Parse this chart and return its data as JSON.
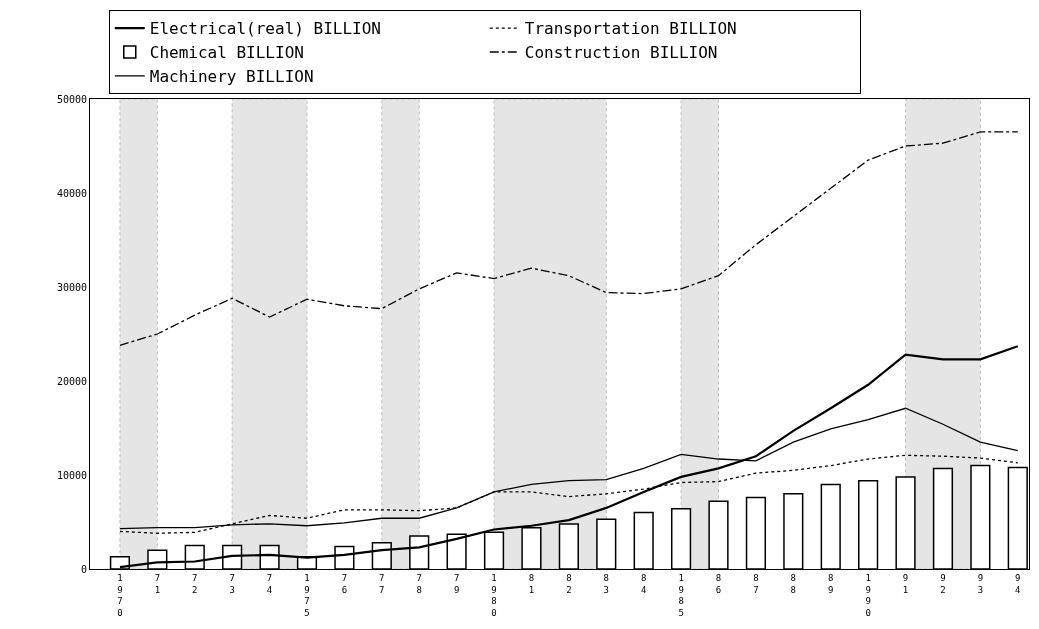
{
  "chart_data": {
    "type": "line",
    "x": [
      1970,
      1971,
      1972,
      1973,
      1974,
      1975,
      1976,
      1977,
      1978,
      1979,
      1980,
      1981,
      1982,
      1983,
      1984,
      1985,
      1986,
      1987,
      1988,
      1989,
      1990,
      1991,
      1992,
      1993,
      1994
    ],
    "series": [
      {
        "name": "Electrical(real) BILLION",
        "line_style": "solid",
        "color": "#000000",
        "values": [
          200,
          700,
          800,
          1400,
          1500,
          1200,
          1500,
          2000,
          2300,
          3200,
          4200,
          4600,
          5200,
          6500,
          8200,
          9800,
          10700,
          12000,
          14700,
          17100,
          19600,
          22800,
          22300,
          22300,
          23700
        ]
      },
      {
        "name": "Transportation BILLION",
        "line_style": "dotted",
        "color": "#000000",
        "values": [
          4000,
          3800,
          3900,
          4800,
          5700,
          5400,
          6300,
          6300,
          6200,
          6500,
          8200,
          8200,
          7700,
          8000,
          8500,
          9200,
          9300,
          10200,
          10500,
          11000,
          11700,
          12100,
          12000,
          11800,
          11300
        ]
      },
      {
        "name": "Chemical BILLION",
        "type": "bar",
        "color": "#ffffff",
        "values": [
          1300,
          2000,
          2500,
          2500,
          2500,
          1300,
          2400,
          2800,
          3500,
          3700,
          3900,
          4400,
          4800,
          5300,
          6000,
          6400,
          7200,
          7600,
          8000,
          9000,
          9400,
          9800,
          10700,
          11000,
          10800
        ]
      },
      {
        "name": "Construction BILLION",
        "line_style": "dashed",
        "color": "#000000",
        "values": [
          23800,
          25000,
          27000,
          28800,
          26800,
          28700,
          28000,
          27700,
          29800,
          31500,
          30900,
          32000,
          31200,
          29400,
          29300,
          29800,
          31200,
          34500,
          37500,
          40500,
          43500,
          45000,
          45300,
          46500,
          46500
        ]
      },
      {
        "name": "Machinery BILLION",
        "line_style": "solid",
        "color": "#000000",
        "values": [
          4300,
          4400,
          4400,
          4700,
          4800,
          4600,
          4900,
          5400,
          5400,
          6500,
          8200,
          9000,
          9400,
          9500,
          10700,
          12200,
          11700,
          11500,
          13500,
          14900,
          15900,
          17100,
          15400,
          13500,
          12600
        ]
      }
    ],
    "xlim": [
      1969.2,
      1994.3
    ],
    "xticks": [
      {
        "value": 1970,
        "label": "1970"
      },
      {
        "value": 1971,
        "label": "71"
      },
      {
        "value": 1972,
        "label": "72"
      },
      {
        "value": 1973,
        "label": "73"
      },
      {
        "value": 1974,
        "label": "74"
      },
      {
        "value": 1975,
        "label": "1975"
      },
      {
        "value": 1976,
        "label": "76"
      },
      {
        "value": 1977,
        "label": "77"
      },
      {
        "value": 1978,
        "label": "78"
      },
      {
        "value": 1979,
        "label": "79"
      },
      {
        "value": 1980,
        "label": "1980"
      },
      {
        "value": 1981,
        "label": "81"
      },
      {
        "value": 1982,
        "label": "82"
      },
      {
        "value": 1983,
        "label": "83"
      },
      {
        "value": 1984,
        "label": "84"
      },
      {
        "value": 1985,
        "label": "1985"
      },
      {
        "value": 1986,
        "label": "86"
      },
      {
        "value": 1987,
        "label": "87"
      },
      {
        "value": 1988,
        "label": "88"
      },
      {
        "value": 1989,
        "label": "89"
      },
      {
        "value": 1990,
        "label": "1990"
      },
      {
        "value": 1991,
        "label": "91"
      },
      {
        "value": 1992,
        "label": "92"
      },
      {
        "value": 1993,
        "label": "93"
      },
      {
        "value": 1994,
        "label": "94"
      }
    ],
    "ylim": [
      0,
      50000
    ],
    "yticks": [
      0,
      10000,
      20000,
      30000,
      40000,
      50000
    ],
    "bands": [
      {
        "axis": "x",
        "from": 1970,
        "to": 1971,
        "color": "#999999"
      },
      {
        "axis": "x",
        "from": 1973,
        "to": 1975,
        "color": "#999999"
      },
      {
        "axis": "x",
        "from": 1977,
        "to": 1978,
        "color": "#999999"
      },
      {
        "axis": "x",
        "from": 1980,
        "to": 1983,
        "color": "#999999"
      },
      {
        "axis": "x",
        "from": 1985,
        "to": 1986,
        "color": "#999999"
      },
      {
        "axis": "x",
        "from": 1991,
        "to": 1993,
        "color": "#999999"
      }
    ],
    "marker": "none",
    "grid": false,
    "legend": "top"
  }
}
